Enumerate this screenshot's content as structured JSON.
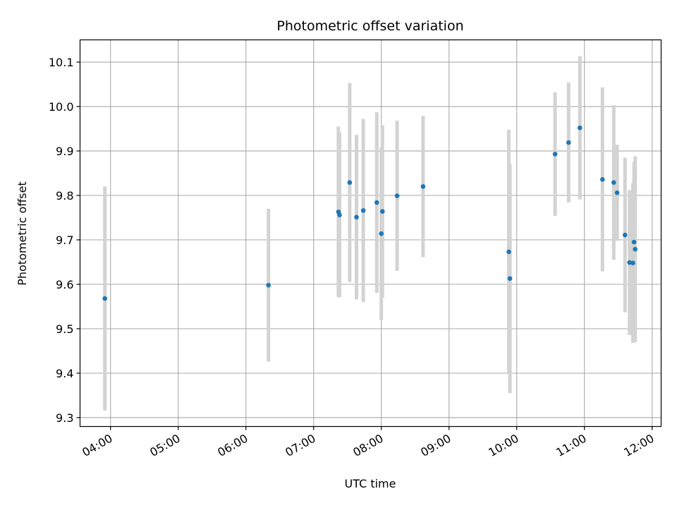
{
  "chart_data": {
    "type": "scatter",
    "title": "Photometric offset variation",
    "xlabel": "UTC time",
    "ylabel": "Photometric offset",
    "x_tick_labels": [
      "04:00",
      "05:00",
      "06:00",
      "07:00",
      "08:00",
      "09:00",
      "10:00",
      "11:00",
      "12:00"
    ],
    "y_tick_labels": [
      "9.3",
      "9.4",
      "9.5",
      "9.6",
      "9.7",
      "9.8",
      "9.9",
      "10.0",
      "10.1"
    ],
    "xlim": [
      "03:33",
      "12:08"
    ],
    "ylim": [
      9.28,
      10.15
    ],
    "grid": true,
    "colors": {
      "points": "#1f77b4",
      "error_bars": "#d3d3d3",
      "grid": "#b0b0b0"
    },
    "points": [
      {
        "x": "03:55",
        "y": 9.568,
        "yerr": 0.252
      },
      {
        "x": "06:20",
        "y": 9.598,
        "yerr": 0.172
      },
      {
        "x": "07:22",
        "y": 9.763,
        "yerr": 0.192
      },
      {
        "x": "07:23",
        "y": 9.756,
        "yerr": 0.185
      },
      {
        "x": "07:32",
        "y": 9.829,
        "yerr": 0.224
      },
      {
        "x": "07:38",
        "y": 9.751,
        "yerr": 0.185
      },
      {
        "x": "07:44",
        "y": 9.766,
        "yerr": 0.206
      },
      {
        "x": "07:56",
        "y": 9.784,
        "yerr": 0.203
      },
      {
        "x": "08:00",
        "y": 9.714,
        "yerr": 0.194
      },
      {
        "x": "08:01",
        "y": 9.764,
        "yerr": 0.194
      },
      {
        "x": "08:14",
        "y": 9.799,
        "yerr": 0.169
      },
      {
        "x": "08:37",
        "y": 9.82,
        "yerr": 0.159
      },
      {
        "x": "09:53",
        "y": 9.673,
        "yerr": 0.275
      },
      {
        "x": "09:54",
        "y": 9.613,
        "yerr": 0.258
      },
      {
        "x": "10:34",
        "y": 9.893,
        "yerr": 0.139
      },
      {
        "x": "10:46",
        "y": 9.919,
        "yerr": 0.135
      },
      {
        "x": "10:56",
        "y": 9.952,
        "yerr": 0.161
      },
      {
        "x": "11:16",
        "y": 9.836,
        "yerr": 0.207
      },
      {
        "x": "11:26",
        "y": 9.829,
        "yerr": 0.174
      },
      {
        "x": "11:29",
        "y": 9.806,
        "yerr": 0.108
      },
      {
        "x": "11:36",
        "y": 9.711,
        "yerr": 0.174
      },
      {
        "x": "11:40",
        "y": 9.649,
        "yerr": 0.163
      },
      {
        "x": "11:43",
        "y": 9.648,
        "yerr": 0.18
      },
      {
        "x": "11:44",
        "y": 9.695,
        "yerr": 0.18
      },
      {
        "x": "11:45",
        "y": 9.679,
        "yerr": 0.209
      }
    ]
  }
}
